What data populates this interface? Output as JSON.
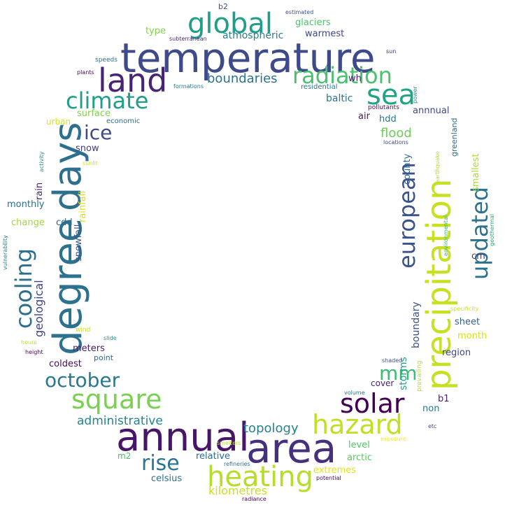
{
  "words": [
    {
      "text": "temperature",
      "color": "#3e4a89"
    },
    {
      "text": "annual",
      "color": "#471669"
    },
    {
      "text": "area",
      "color": "#46307e"
    },
    {
      "text": "degree",
      "color": "#2c718e"
    },
    {
      "text": "days",
      "color": "#2d708e"
    },
    {
      "text": "precipitation",
      "color": "#c7e020"
    },
    {
      "text": "land",
      "color": "#482475"
    },
    {
      "text": "global",
      "color": "#1f9e89"
    },
    {
      "text": "heating",
      "color": "#b5de2b"
    },
    {
      "text": "solar",
      "color": "#440154"
    },
    {
      "text": "sea",
      "color": "#20a486"
    },
    {
      "text": "radiation",
      "color": "#4ac16d"
    },
    {
      "text": "hazard",
      "color": "#c2df23"
    },
    {
      "text": "square",
      "color": "#7ad151"
    },
    {
      "text": "climate",
      "color": "#1f9e89"
    },
    {
      "text": "european",
      "color": "#3b528b"
    },
    {
      "text": "updated",
      "color": "#2c728e"
    },
    {
      "text": "cooling",
      "color": "#2d708e"
    },
    {
      "text": "october",
      "color": "#2a788e"
    },
    {
      "text": "rise",
      "color": "#2b758e"
    },
    {
      "text": "ice",
      "color": "#3f4889"
    },
    {
      "text": "mm",
      "color": "#3dbc74"
    },
    {
      "text": "topology",
      "color": "#26828e"
    },
    {
      "text": "boundaries",
      "color": "#2c728e"
    },
    {
      "text": "administrative",
      "color": "#25848e"
    },
    {
      "text": "kilometres",
      "color": "#c8e020"
    },
    {
      "text": "geological",
      "color": "#414487"
    },
    {
      "text": "flood",
      "color": "#6ccd5a"
    },
    {
      "text": "atmospheric",
      "color": "#287d8e"
    },
    {
      "text": "glaciers",
      "color": "#4ec36b"
    },
    {
      "text": "warmest",
      "color": "#3f4788"
    },
    {
      "text": "baltic",
      "color": "#2a778e"
    },
    {
      "text": "annnual",
      "color": "#3e4989"
    },
    {
      "text": "storms",
      "color": "#1fa088"
    },
    {
      "text": "boundary",
      "color": "#3b528b"
    },
    {
      "text": "county",
      "color": "#2f6b8e"
    },
    {
      "text": "greenland",
      "color": "#2e6e8e"
    },
    {
      "text": "smallest",
      "color": "#addc30"
    },
    {
      "text": "cm",
      "color": "#443983"
    },
    {
      "text": "sheet",
      "color": "#34608d"
    },
    {
      "text": "month",
      "color": "#d8e219"
    },
    {
      "text": "region",
      "color": "#404688"
    },
    {
      "text": "b1",
      "color": "#482173"
    },
    {
      "text": "non",
      "color": "#2a788e"
    },
    {
      "text": "relative",
      "color": "#2f6c8e"
    },
    {
      "text": "level",
      "color": "#54c568"
    },
    {
      "text": "arctic",
      "color": "#5ec962"
    },
    {
      "text": "extremes",
      "color": "#e5e419"
    },
    {
      "text": "celsius",
      "color": "#2c738e"
    },
    {
      "text": "m2",
      "color": "#4ac16d"
    },
    {
      "text": "coldest",
      "color": "#460b5e"
    },
    {
      "text": "meters",
      "color": "#481a6c"
    },
    {
      "text": "snowfall",
      "color": "#3a548c"
    },
    {
      "text": "rainfall",
      "color": "#dde318"
    },
    {
      "text": "rain",
      "color": "#481d6f"
    },
    {
      "text": "monthly",
      "color": "#2d708e"
    },
    {
      "text": "change",
      "color": "#a0da39"
    },
    {
      "text": "cdd",
      "color": "#2f6b8e"
    },
    {
      "text": "snow",
      "color": "#443b84"
    },
    {
      "text": "urban",
      "color": "#dae319"
    },
    {
      "text": "surface",
      "color": "#7fd34e"
    },
    {
      "text": "economic",
      "color": "#2f6c8e"
    },
    {
      "text": "air",
      "color": "#481a6c"
    },
    {
      "text": "hdd",
      "color": "#2a778e"
    },
    {
      "text": "type",
      "color": "#84d44b"
    },
    {
      "text": "b2",
      "color": "#39558c"
    },
    {
      "text": "wh",
      "color": "#482475"
    },
    {
      "text": "residential",
      "color": "#2a788e"
    },
    {
      "text": "pollutants",
      "color": "#471063"
    },
    {
      "text": "locations",
      "color": "#3e4a89"
    },
    {
      "text": "earthquake",
      "color": "#b8de29"
    },
    {
      "text": "environmental",
      "color": "#35b779"
    },
    {
      "text": "geothermal",
      "color": "#22a884"
    },
    {
      "text": "specificity",
      "color": "#d0e11c"
    },
    {
      "text": "prevailing",
      "color": "#b5de2b"
    },
    {
      "text": "shaded",
      "color": "#3b528b"
    },
    {
      "text": "cover",
      "color": "#481f70"
    },
    {
      "text": "volume",
      "color": "#2a788e"
    },
    {
      "text": "etc",
      "color": "#3e4989"
    },
    {
      "text": "exposure",
      "color": "#fde725"
    },
    {
      "text": "smelters",
      "color": "#b5de2b"
    },
    {
      "text": "refineries",
      "color": "#2c728e"
    },
    {
      "text": "potential",
      "color": "#460a5d"
    },
    {
      "text": "radiance",
      "color": "#440154"
    },
    {
      "text": "wind",
      "color": "#cae11f"
    },
    {
      "text": "slide",
      "color": "#1f948c"
    },
    {
      "text": "hours",
      "color": "#b5de2b"
    },
    {
      "text": "point",
      "color": "#2e6e8e"
    },
    {
      "text": "height",
      "color": "#440154"
    },
    {
      "text": "vulnerability",
      "color": "#25838e"
    },
    {
      "text": "activity",
      "color": "#21918c"
    },
    {
      "text": "sunlit",
      "color": "#d2e21b"
    },
    {
      "text": "speeds",
      "color": "#2c728e"
    },
    {
      "text": "plants",
      "color": "#46085c"
    },
    {
      "text": "formations",
      "color": "#287c8e"
    },
    {
      "text": "subterranean",
      "color": "#482878"
    },
    {
      "text": "estimated",
      "color": "#3b528b"
    },
    {
      "text": "sun",
      "color": "#482777"
    },
    {
      "text": "power",
      "color": "#228c8d"
    }
  ]
}
